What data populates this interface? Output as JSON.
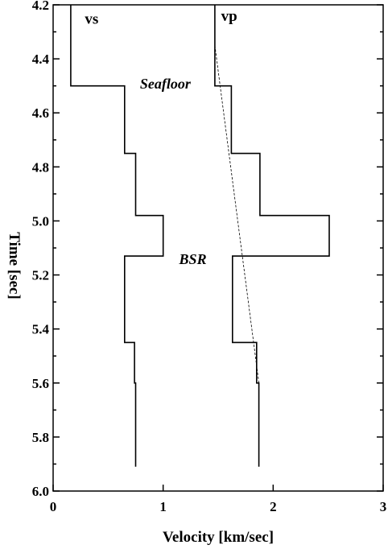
{
  "chart_data": {
    "type": "line",
    "orientation": "vertical-profile",
    "xlabel": "Velocity [km/sec]",
    "ylabel": "Time [sec]",
    "xlim": [
      0,
      3
    ],
    "ylim": [
      4.2,
      6.0
    ],
    "y_inverted": true,
    "x_ticks": [
      0,
      1,
      2,
      3
    ],
    "x_tick_labels": [
      "0",
      "1",
      "2",
      "3"
    ],
    "y_ticks": [
      4.2,
      4.4,
      4.6,
      4.8,
      5.0,
      5.2,
      5.4,
      5.6,
      5.8,
      6.0
    ],
    "y_tick_labels": [
      "4.2",
      "4.4",
      "4.6",
      "4.8",
      "5.0",
      "5.2",
      "5.4",
      "5.6",
      "5.8",
      "6.0"
    ],
    "y_minor_ticks": [
      4.3,
      4.5,
      4.7,
      4.9,
      5.1,
      5.3,
      5.5,
      5.7,
      5.9
    ],
    "grid": false,
    "series": [
      {
        "name": "vs",
        "style": "step",
        "points": [
          [
            0.16,
            4.2
          ],
          [
            0.16,
            4.5
          ],
          [
            0.65,
            4.5
          ],
          [
            0.65,
            4.75
          ],
          [
            0.75,
            4.75
          ],
          [
            0.75,
            4.98
          ],
          [
            1.0,
            4.98
          ],
          [
            1.0,
            5.13
          ],
          [
            0.65,
            5.13
          ],
          [
            0.65,
            5.45
          ],
          [
            0.74,
            5.45
          ],
          [
            0.74,
            5.6
          ],
          [
            0.75,
            5.6
          ],
          [
            0.75,
            5.91
          ]
        ]
      },
      {
        "name": "vp",
        "style": "step",
        "points": [
          [
            1.47,
            4.2
          ],
          [
            1.47,
            4.5
          ],
          [
            1.62,
            4.5
          ],
          [
            1.62,
            4.75
          ],
          [
            1.88,
            4.75
          ],
          [
            1.88,
            4.98
          ],
          [
            2.51,
            4.98
          ],
          [
            2.51,
            5.13
          ],
          [
            1.63,
            5.13
          ],
          [
            1.63,
            5.45
          ],
          [
            1.85,
            5.45
          ],
          [
            1.85,
            5.6
          ],
          [
            1.87,
            5.6
          ],
          [
            1.87,
            5.91
          ]
        ]
      },
      {
        "style": "dashed",
        "points": [
          [
            1.47,
            4.35
          ],
          [
            1.87,
            5.6
          ]
        ]
      }
    ],
    "annotations": [
      {
        "text": "vs",
        "x": 0.35,
        "y": 4.27
      },
      {
        "text": "vp",
        "x": 1.6,
        "y": 4.26
      },
      {
        "text": "Seafloor",
        "x": 1.02,
        "y": 4.51
      },
      {
        "text": "BSR",
        "x": 1.27,
        "y": 5.16
      }
    ]
  }
}
